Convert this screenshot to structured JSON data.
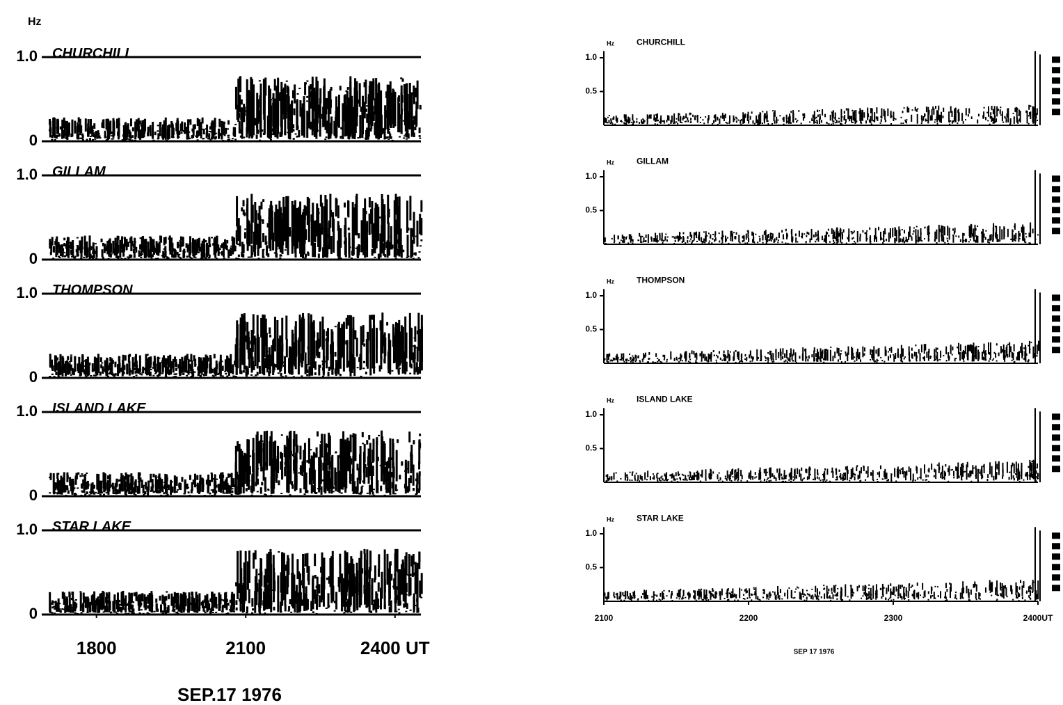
{
  "chart_data": [
    {
      "type": "spectrogram",
      "ylabel": "Hz",
      "xlabel": "SEP.17 1976",
      "panels": [
        "CHURCHILL",
        "GILLAM",
        "THOMPSON",
        "ISLAND LAKE",
        "STAR LAKE"
      ],
      "xlim": [
        1690,
        2480
      ],
      "xticks": [
        1800,
        2100,
        {
          "value": 2400,
          "label": "2400 UT"
        }
      ],
      "ylim": [
        0,
        1.05
      ],
      "yticks": [
        0,
        {
          "value": 1,
          "label": "1.0"
        }
      ]
    },
    {
      "type": "spectrogram",
      "ylabel": "Hz",
      "xlabel": "SEP 17 1976",
      "panels": [
        "CHURCHILL",
        "GILLAM",
        "THOMPSON",
        "ISLAND LAKE",
        "STAR LAKE"
      ],
      "xlim": [
        2100,
        2400
      ],
      "xticks": [
        2100,
        2200,
        2300,
        {
          "value": 2400,
          "label": "2400UT"
        }
      ],
      "ylim": [
        0,
        1.1
      ],
      "yticks": [
        0.5,
        {
          "value": 1,
          "label": "1.0"
        }
      ]
    }
  ]
}
